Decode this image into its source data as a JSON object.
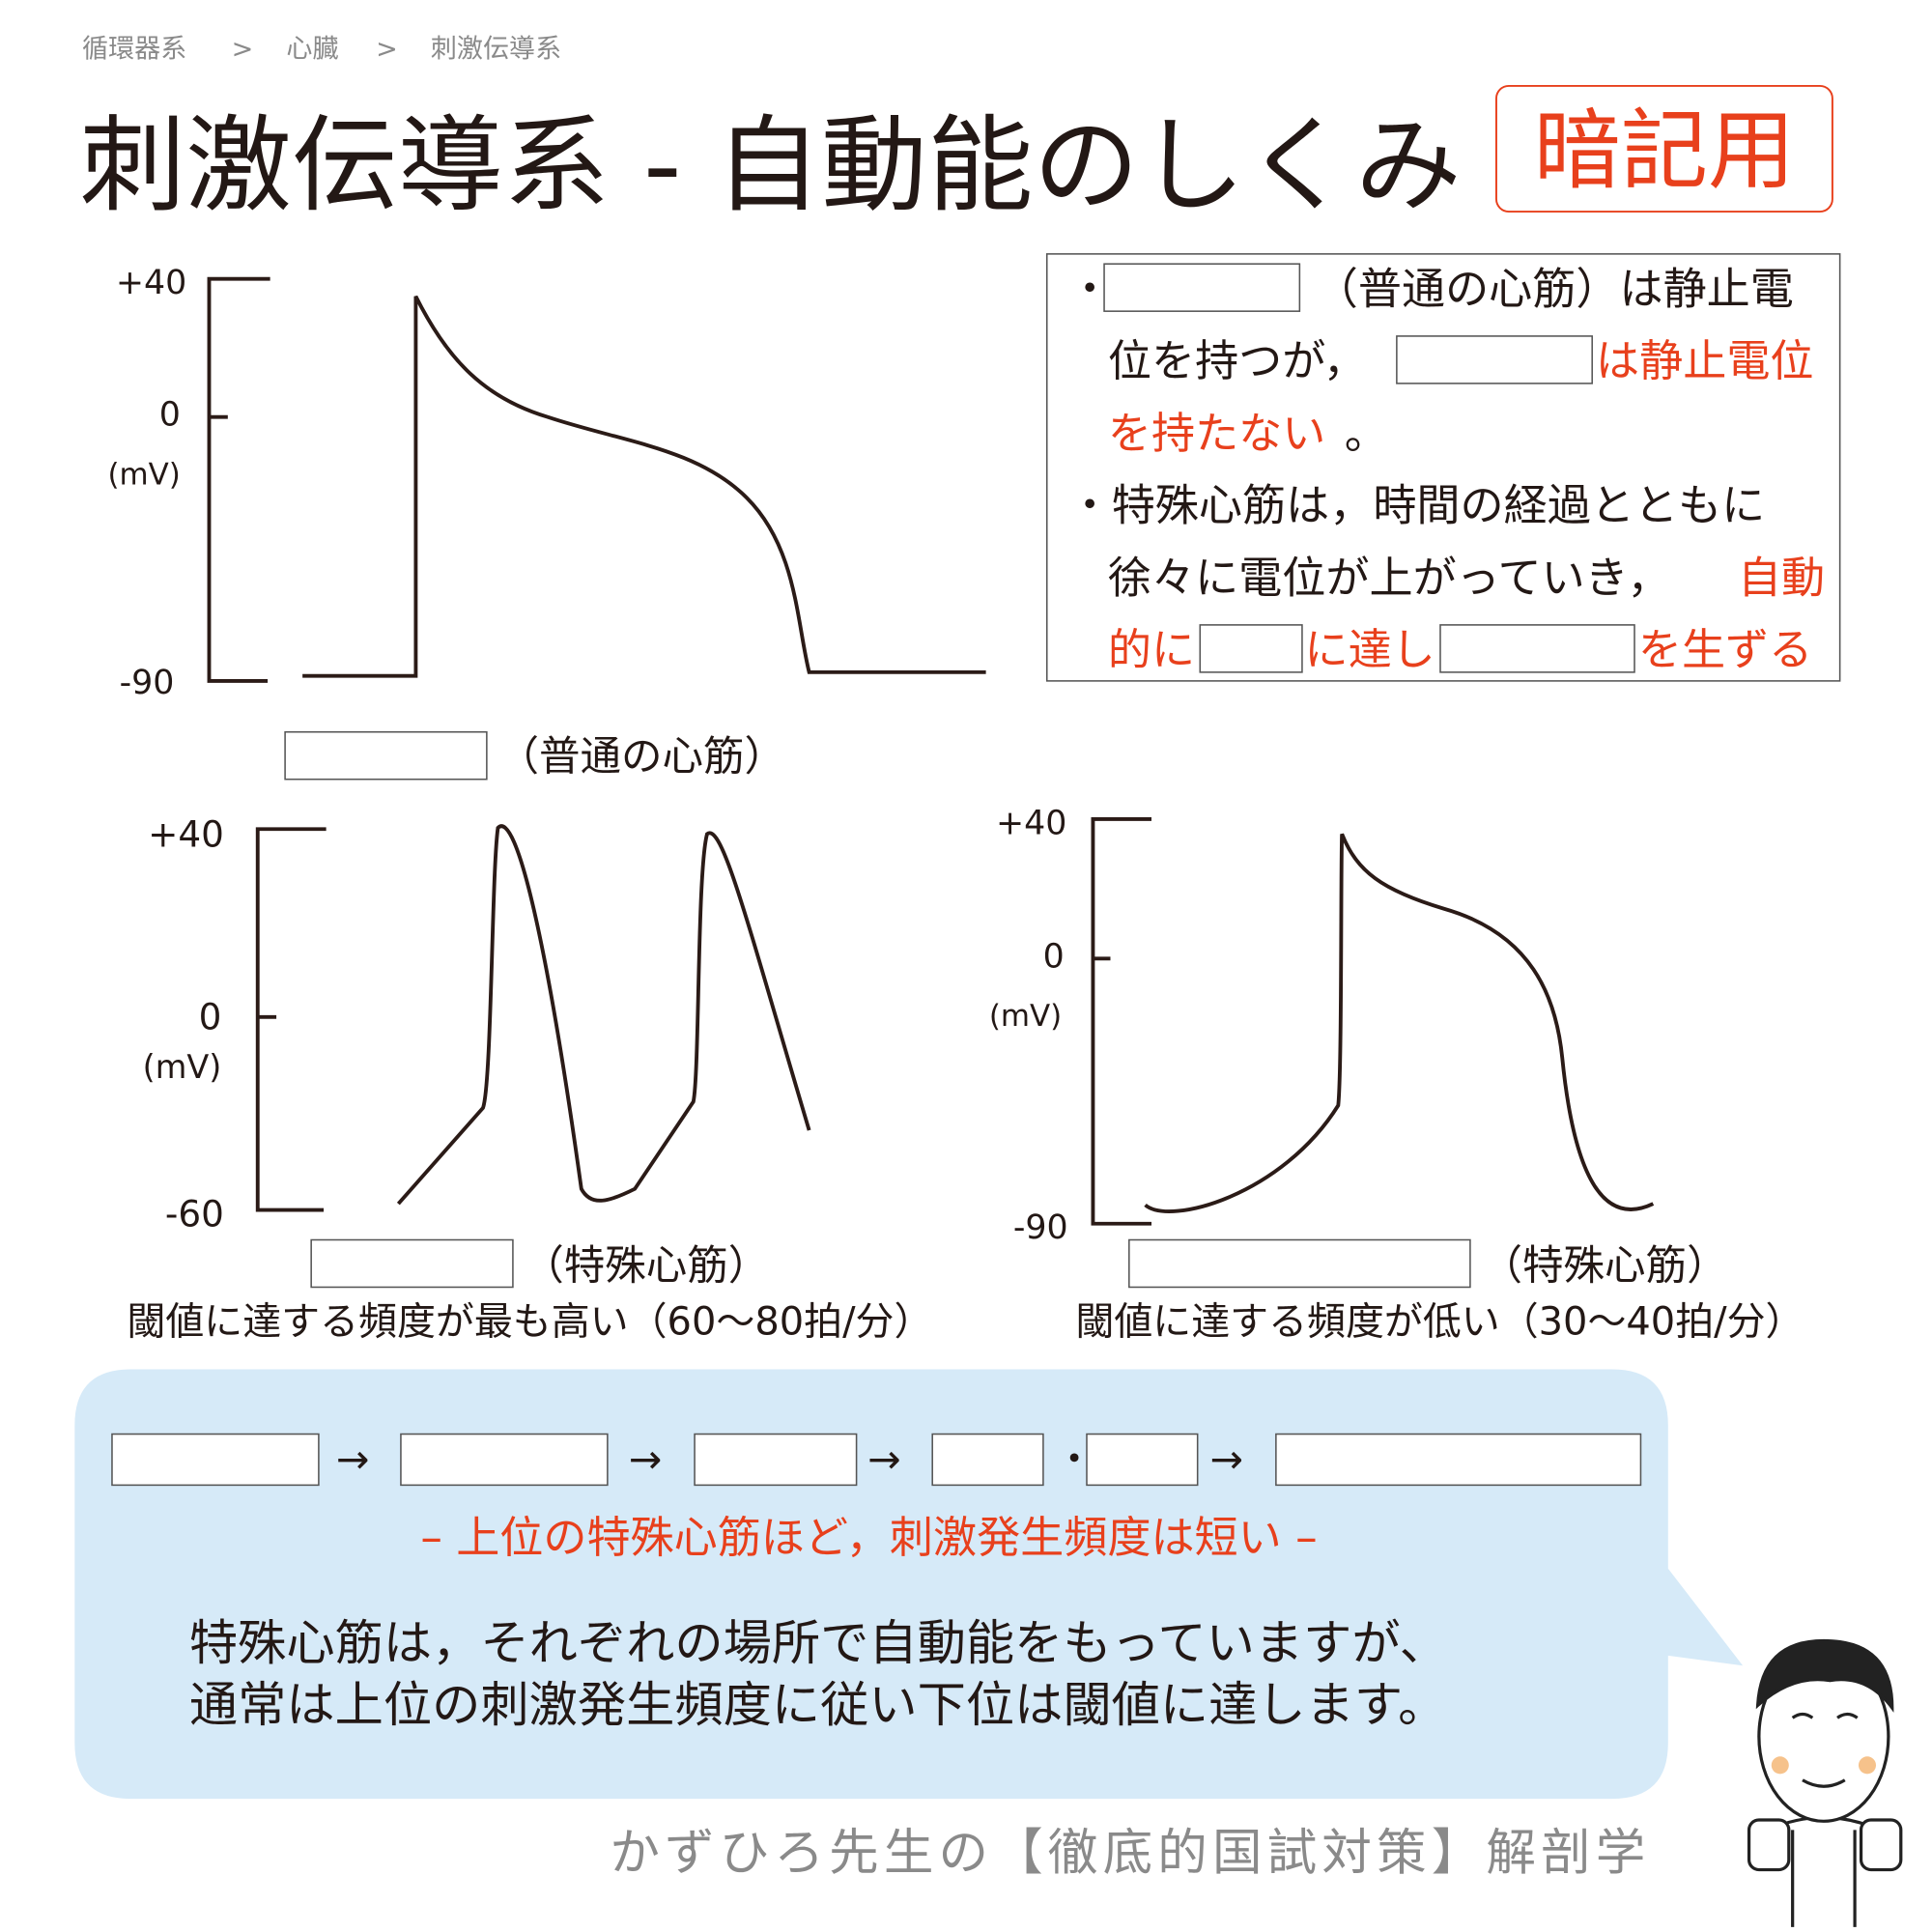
{
  "breadcrumb": [
    "循環器系",
    ">",
    "心臓",
    ">",
    "刺激伝導系"
  ],
  "title": "刺激伝導系 - 自動能のしくみ",
  "badge": "暗記用",
  "note": [
    "・",
    "（普通の心筋）は静止電",
    "位を持つが，",
    "は静止電位",
    "を持たない",
    "。",
    "・特殊心筋は，時間の経過とともに",
    "徐々に電位が上がっていき，",
    "自動",
    "的に",
    "に達し",
    "を生ずる"
  ],
  "charts": [
    {
      "labels": [
        "+40",
        "0",
        "(mV)",
        "-90"
      ],
      "caption": "（普通の心筋）"
    },
    {
      "labels": [
        "+40",
        "0",
        "(mV)",
        "-60"
      ],
      "caption": "（特殊心筋）",
      "description": "閾値に達する頻度が最も高い（60〜80拍/分）"
    },
    {
      "labels": [
        "+40",
        "0",
        "(mV)",
        "-90"
      ],
      "caption": "（特殊心筋）",
      "description": "閾値に達する頻度が低い（30〜40拍/分）"
    }
  ],
  "sequence": [
    "→",
    "→",
    "→",
    "・",
    "→"
  ],
  "emphasis": "– 上位の特殊心筋ほど，刺激発生頻度は短い –",
  "body": [
    "特殊心筋は，それぞれの場所で自動能をもっていますが、",
    "通常は上位の刺激発生頻度に従い下位は閾値に達します。"
  ],
  "footer": "かずひろ先生の【徹底的国試対策】解剖学"
}
